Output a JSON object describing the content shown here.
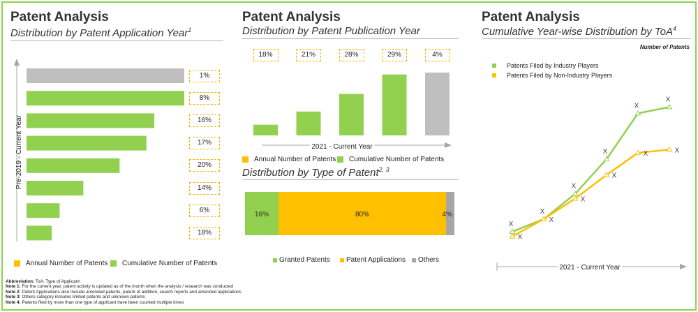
{
  "colors": {
    "green": "#92d050",
    "yellow": "#ffc000",
    "gray": "#bfbfbf",
    "border": "#8fd14f"
  },
  "panel_left": {
    "title": "Patent Analysis",
    "subtitle": "Distribution by Patent Application Year",
    "subtitle_sup": "1",
    "axis_label": "Pre-2019 - Current Year",
    "legend": [
      "Annual Number of Patents",
      "Cumulative Number of Patents"
    ]
  },
  "panel_mid": {
    "title": "Patent Analysis",
    "subtitle": "Distribution by Patent Publication Year",
    "axis_label": "2021 - Current Year",
    "legend": [
      "Annual Number of Patents",
      "Cumulative Number of Patents"
    ],
    "type_title": "Distribution by Type of Patent",
    "type_sup": "2, 3",
    "type_legend": [
      "Granted Patents",
      "Patent Applications",
      "Others"
    ]
  },
  "panel_right": {
    "title": "Patent Analysis",
    "subtitle": "Cumulative Year-wise Distribution by ToA",
    "subtitle_sup": "4",
    "unit_label": "Number of Patents",
    "axis_label": "2021 - Current Year"
  },
  "chart_data": [
    {
      "type": "bar",
      "orientation": "horizontal",
      "axis_label": "Pre-2019 - Current Year",
      "value_labels": [
        "1%",
        "8%",
        "16%",
        "17%",
        "20%",
        "14%",
        "6%",
        "18%"
      ],
      "bar_colors": [
        "#bfbfbf",
        "#92d050",
        "#92d050",
        "#92d050",
        "#92d050",
        "#92d050",
        "#92d050",
        "#92d050"
      ],
      "relative_values": [
        100,
        100,
        81,
        76,
        59,
        36,
        21,
        16
      ]
    },
    {
      "type": "bar",
      "orientation": "vertical",
      "axis_label": "2021 - Current Year",
      "value_labels": [
        "18%",
        "21%",
        "28%",
        "29%",
        "4%"
      ],
      "bar_colors": [
        "#92d050",
        "#92d050",
        "#92d050",
        "#92d050",
        "#bfbfbf"
      ],
      "relative_values": [
        17,
        38,
        66,
        97,
        100
      ]
    },
    {
      "type": "bar",
      "orientation": "stacked-100",
      "series": [
        {
          "name": "Granted Patents",
          "value": 16,
          "label": "16%",
          "color": "#92d050"
        },
        {
          "name": "Patent Applications",
          "value": 80,
          "label": "80%",
          "color": "#ffc000"
        },
        {
          "name": "Others",
          "value": 4,
          "label": "4%",
          "color": "#a6a6a6"
        }
      ]
    },
    {
      "type": "line",
      "axis_label": "2021 - Current Year",
      "point_marker": "X",
      "legend_placement": "top-left",
      "series": [
        {
          "name": "Patents Filed by Industry Players",
          "color": "#92d050",
          "relative_values": [
            8,
            16,
            32,
            54,
            83,
            87
          ]
        },
        {
          "name": "Patents Filed by Non-Industry Players",
          "color": "#ffc000",
          "relative_values": [
            5,
            16,
            29,
            44,
            58,
            60
          ]
        }
      ]
    }
  ],
  "footnotes": [
    {
      "label": "Abbreviation:",
      "text": "ToA: Type of Applicant"
    },
    {
      "label": "Note 1:",
      "text": "For the current year, patent activity is updated as of the month when the analysis / research was conducted"
    },
    {
      "label": "Note 2:",
      "text": "Patent Applications also include amended patents, patent of addition, search reports and amended applications"
    },
    {
      "label": "Note 3:",
      "text": "Others category includes limited patents and unknown patents"
    },
    {
      "label": "Note 4:",
      "text": "Patents filed by more than one type of applicant have been counted multiple times"
    }
  ]
}
